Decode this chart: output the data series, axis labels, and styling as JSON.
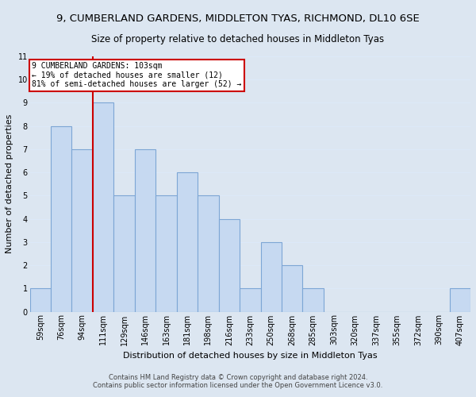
{
  "title": "9, CUMBERLAND GARDENS, MIDDLETON TYAS, RICHMOND, DL10 6SE",
  "subtitle": "Size of property relative to detached houses in Middleton Tyas",
  "xlabel": "Distribution of detached houses by size in Middleton Tyas",
  "ylabel": "Number of detached properties",
  "footnote1": "Contains HM Land Registry data © Crown copyright and database right 2024.",
  "footnote2": "Contains public sector information licensed under the Open Government Licence v3.0.",
  "bin_labels": [
    "59sqm",
    "76sqm",
    "94sqm",
    "111sqm",
    "129sqm",
    "146sqm",
    "163sqm",
    "181sqm",
    "198sqm",
    "216sqm",
    "233sqm",
    "250sqm",
    "268sqm",
    "285sqm",
    "303sqm",
    "320sqm",
    "337sqm",
    "355sqm",
    "372sqm",
    "390sqm",
    "407sqm"
  ],
  "bar_heights": [
    1,
    8,
    7,
    9,
    5,
    7,
    5,
    6,
    5,
    4,
    1,
    3,
    2,
    1,
    0,
    0,
    0,
    0,
    0,
    0,
    1
  ],
  "bar_color": "#c6d9f1",
  "bar_edge_color": "#7da6d5",
  "reference_line_color": "#cc0000",
  "annotation_title": "9 CUMBERLAND GARDENS: 103sqm",
  "annotation_line1": "← 19% of detached houses are smaller (12)",
  "annotation_line2": "81% of semi-detached houses are larger (52) →",
  "annotation_box_color": "#ffffff",
  "annotation_box_edge": "#cc0000",
  "ylim": [
    0,
    11
  ],
  "yticks": [
    0,
    1,
    2,
    3,
    4,
    5,
    6,
    7,
    8,
    9,
    10,
    11
  ],
  "grid_color": "#dce9f8",
  "background_color": "#dce6f1",
  "title_fontsize": 9.5,
  "subtitle_fontsize": 8.5,
  "axis_fontsize": 8,
  "tick_fontsize": 7,
  "footnote_fontsize": 6
}
